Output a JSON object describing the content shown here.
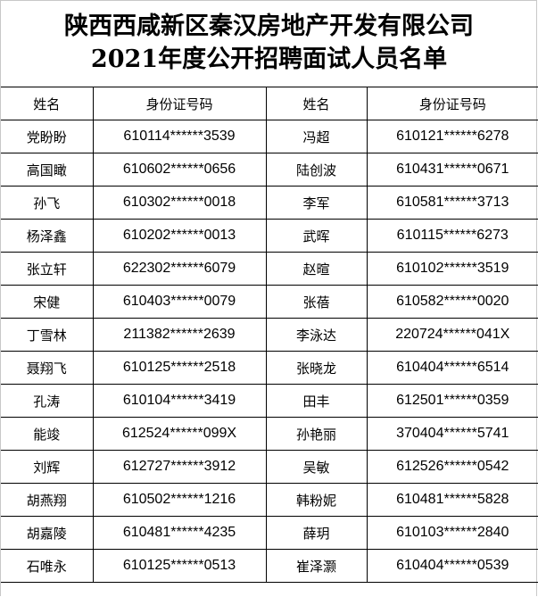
{
  "title": {
    "line1": "陕西西咸新区秦汉房地产开发有限公司",
    "line2": "2021年度公开招聘面试人员名单"
  },
  "table": {
    "headers": [
      "姓名",
      "身份证号码",
      "姓名",
      "身份证号码"
    ],
    "rows": [
      [
        "党盼盼",
        "610114******3539",
        "冯超",
        "610121******6278"
      ],
      [
        "高国瞰",
        "610602******0656",
        "陆创波",
        "610431******0671"
      ],
      [
        "孙飞",
        "610302******0018",
        "李军",
        "610581******3713"
      ],
      [
        "杨泽鑫",
        "610202******0013",
        "武晖",
        "610115******6273"
      ],
      [
        "张立轩",
        "622302******6079",
        "赵暄",
        "610102******3519"
      ],
      [
        "宋健",
        "610403******0079",
        "张蓓",
        "610582******0020"
      ],
      [
        "丁雪林",
        "211382******2639",
        "李泳达",
        "220724******041X"
      ],
      [
        "聂翔飞",
        "610125******2518",
        "张晓龙",
        "610404******6514"
      ],
      [
        "孔涛",
        "610104******3419",
        "田丰",
        "612501******0359"
      ],
      [
        "能竣",
        "612524******099X",
        "孙艳丽",
        "370404******5741"
      ],
      [
        "刘辉",
        "612727******3912",
        "吴敏",
        "612526******0542"
      ],
      [
        "胡燕翔",
        "610502******1216",
        "韩粉妮",
        "610481******5828"
      ],
      [
        "胡嘉陵",
        "610481******4235",
        "薛玥",
        "610103******2840"
      ],
      [
        "石唯永",
        "610125******0513",
        "崔泽灏",
        "610404******0539"
      ]
    ]
  }
}
